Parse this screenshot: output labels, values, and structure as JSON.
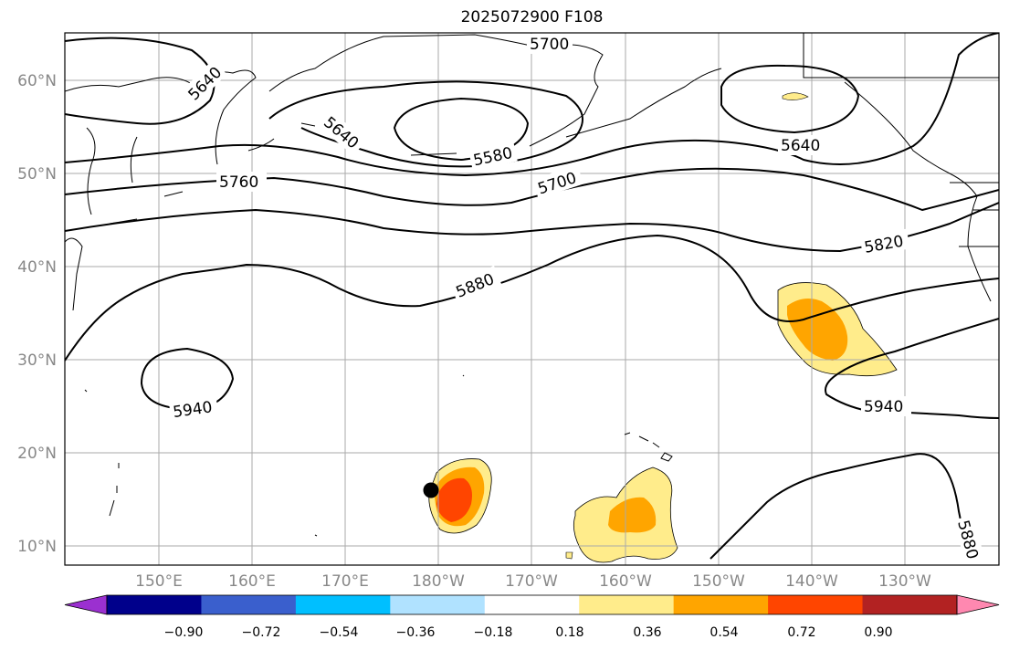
{
  "title": "2025072900 F108",
  "latitude_labels": [
    "60°N",
    "50°N",
    "40°N",
    "30°N",
    "20°N",
    "10°N"
  ],
  "longitude_labels": [
    "150°E",
    "160°E",
    "170°E",
    "180°W",
    "170°W",
    "160°W",
    "150°W",
    "140°W",
    "130°W"
  ],
  "contour_labels": [
    "5700",
    "5640",
    "5640",
    "5580",
    "5640",
    "5760",
    "5700",
    "5820",
    "5880",
    "5940",
    "5940",
    "5880"
  ],
  "colorbar": {
    "tick_labels": [
      "−0.90",
      "−0.72",
      "−0.54",
      "−0.36",
      "−0.18",
      "0.18",
      "0.36",
      "0.54",
      "0.72",
      "0.90"
    ],
    "colors": [
      "#9b30d0",
      "#00008b",
      "#3a5fcd",
      "#00bfff",
      "#b0e2ff",
      "#ffffff",
      "#ffec8b",
      "#ffa500",
      "#ff4500",
      "#b22222",
      "#ff88b0"
    ]
  },
  "fill_colors": {
    "light": "#ffec8b",
    "mid": "#ffa500",
    "strong": "#ff4500"
  },
  "marker": {
    "label": "",
    "color": "#000000"
  }
}
